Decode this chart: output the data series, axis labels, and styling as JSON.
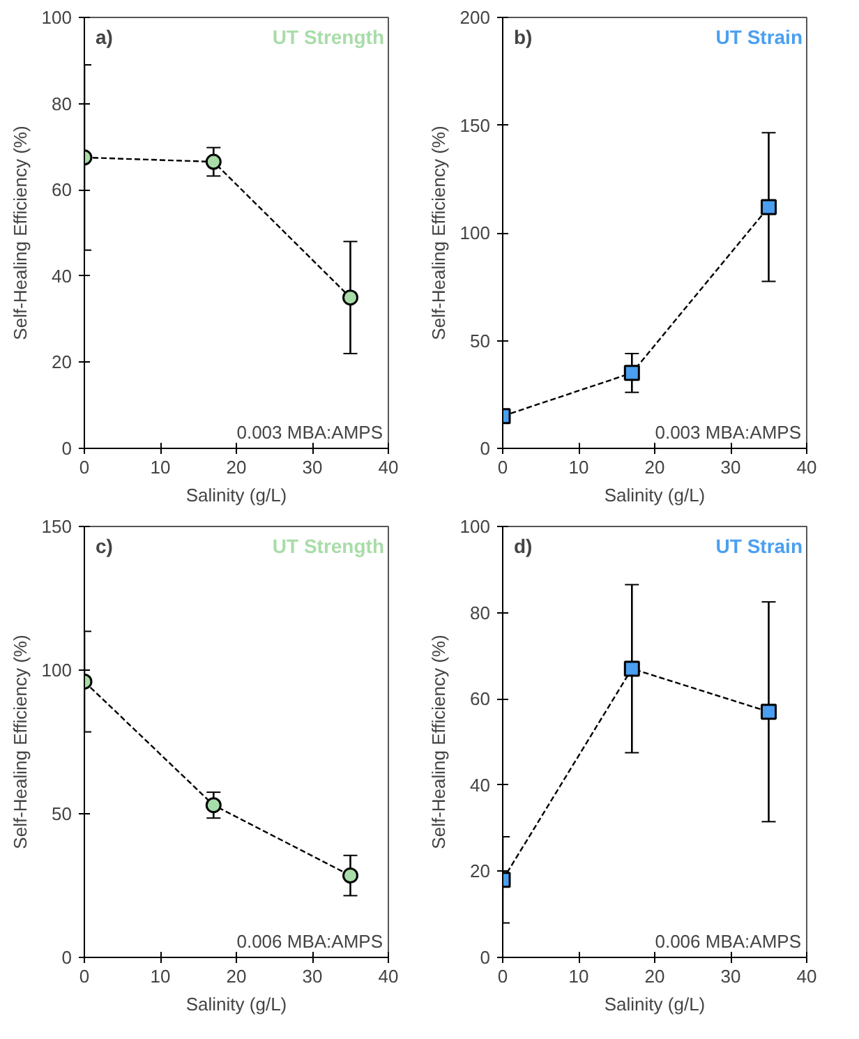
{
  "chart_data": [
    {
      "type": "line",
      "xlabel": "Salinity (g/L)",
      "ylabel": "Self-Healing Efficiency (%)",
      "x": [
        0,
        17,
        35
      ],
      "xlim": [
        0,
        40
      ],
      "xticks": [
        0,
        10,
        20,
        30,
        40
      ],
      "ylim": [
        0,
        100
      ],
      "yticks": [
        0,
        20,
        40,
        60,
        80,
        100
      ],
      "marker": "circle",
      "line_style": "dashed",
      "grid": false,
      "annotations": [
        "a)",
        "0.003 MBA:AMPS"
      ],
      "series": [
        {
          "name": "UT Strength",
          "color": "#a8dca8",
          "values": [
            67.5,
            66.5,
            35
          ],
          "errors": [
            21.5,
            3.3,
            13
          ]
        }
      ]
    },
    {
      "type": "line",
      "xlabel": "Salinity (g/L)",
      "ylabel": "Self-Healing Efficiency (%)",
      "x": [
        0,
        17,
        35
      ],
      "xlim": [
        0,
        40
      ],
      "xticks": [
        0,
        10,
        20,
        30,
        40
      ],
      "ylim": [
        0,
        200
      ],
      "yticks": [
        0,
        50,
        100,
        150,
        200
      ],
      "marker": "square",
      "line_style": "dashed",
      "grid": false,
      "annotations": [
        "b)",
        "0.003 MBA:AMPS"
      ],
      "series": [
        {
          "name": "UT Strain",
          "color": "#4a9ff0",
          "values": [
            15,
            35,
            112
          ],
          "errors": [
            3,
            9,
            34.5
          ]
        }
      ]
    },
    {
      "type": "line",
      "xlabel": "Salinity (g/L)",
      "ylabel": "Self-Healing Efficiency (%)",
      "x": [
        0,
        17,
        35
      ],
      "xlim": [
        0,
        40
      ],
      "xticks": [
        0,
        10,
        20,
        30,
        40
      ],
      "ylim": [
        0,
        150
      ],
      "yticks": [
        0,
        50,
        100,
        150
      ],
      "marker": "circle",
      "line_style": "dashed",
      "grid": false,
      "annotations": [
        "c)",
        "0.006 MBA:AMPS"
      ],
      "series": [
        {
          "name": "UT Strength",
          "color": "#a8dca8",
          "values": [
            96,
            53,
            28.5
          ],
          "errors": [
            17.5,
            4.5,
            7
          ]
        }
      ]
    },
    {
      "type": "line",
      "xlabel": "Salinity (g/L)",
      "ylabel": "Self-Healing Efficiency (%)",
      "x": [
        0,
        17,
        35
      ],
      "xlim": [
        0,
        40
      ],
      "xticks": [
        0,
        10,
        20,
        30,
        40
      ],
      "ylim": [
        0,
        100
      ],
      "yticks": [
        0,
        20,
        40,
        60,
        80,
        100
      ],
      "marker": "square",
      "line_style": "dashed",
      "grid": false,
      "annotations": [
        "d)",
        "0.006 MBA:AMPS"
      ],
      "series": [
        {
          "name": "UT Strain",
          "color": "#4a9ff0",
          "values": [
            18,
            67,
            57
          ],
          "errors": [
            10,
            19.5,
            25.5
          ]
        }
      ]
    }
  ]
}
